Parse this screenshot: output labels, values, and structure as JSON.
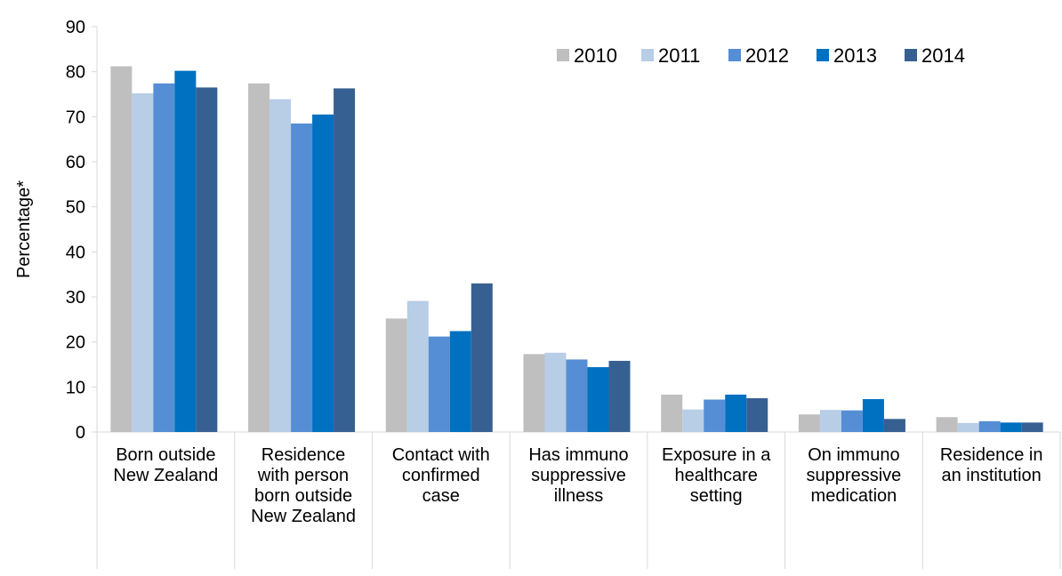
{
  "chart_data": {
    "type": "bar",
    "title": "",
    "xlabel": "",
    "ylabel": "Percentage*",
    "ylim": [
      0,
      90
    ],
    "yticks": [
      0,
      10,
      20,
      30,
      40,
      50,
      60,
      70,
      80,
      90
    ],
    "grid": false,
    "legend_position": "top-right",
    "categories": [
      "Born outside\nNew Zealand",
      "Residence\nwith person\nborn outside\nNew Zealand",
      "Contact with\nconfirmed\ncase",
      "Has immuno\nsuppressive\nillness",
      "Exposure in a\nhealthcare\nsetting",
      "On immuno\nsuppressive\nmedication",
      "Residence in\nan institution"
    ],
    "series": [
      {
        "name": "2010",
        "color": "#bfbfbf",
        "values": [
          81.2,
          77.4,
          25.2,
          17.3,
          8.3,
          3.9,
          3.3
        ]
      },
      {
        "name": "2011",
        "color": "#b8cde6",
        "values": [
          75.2,
          73.9,
          29.1,
          17.6,
          5.0,
          4.9,
          2.0
        ]
      },
      {
        "name": "2012",
        "color": "#558ed5",
        "values": [
          77.4,
          68.5,
          21.2,
          16.1,
          7.2,
          4.8,
          2.4
        ]
      },
      {
        "name": "2013",
        "color": "#0070c0",
        "values": [
          80.2,
          70.5,
          22.4,
          14.4,
          8.3,
          7.3,
          2.1
        ]
      },
      {
        "name": "2014",
        "color": "#376092",
        "values": [
          76.5,
          76.3,
          33.0,
          15.8,
          7.5,
          2.9,
          2.1
        ]
      }
    ]
  }
}
